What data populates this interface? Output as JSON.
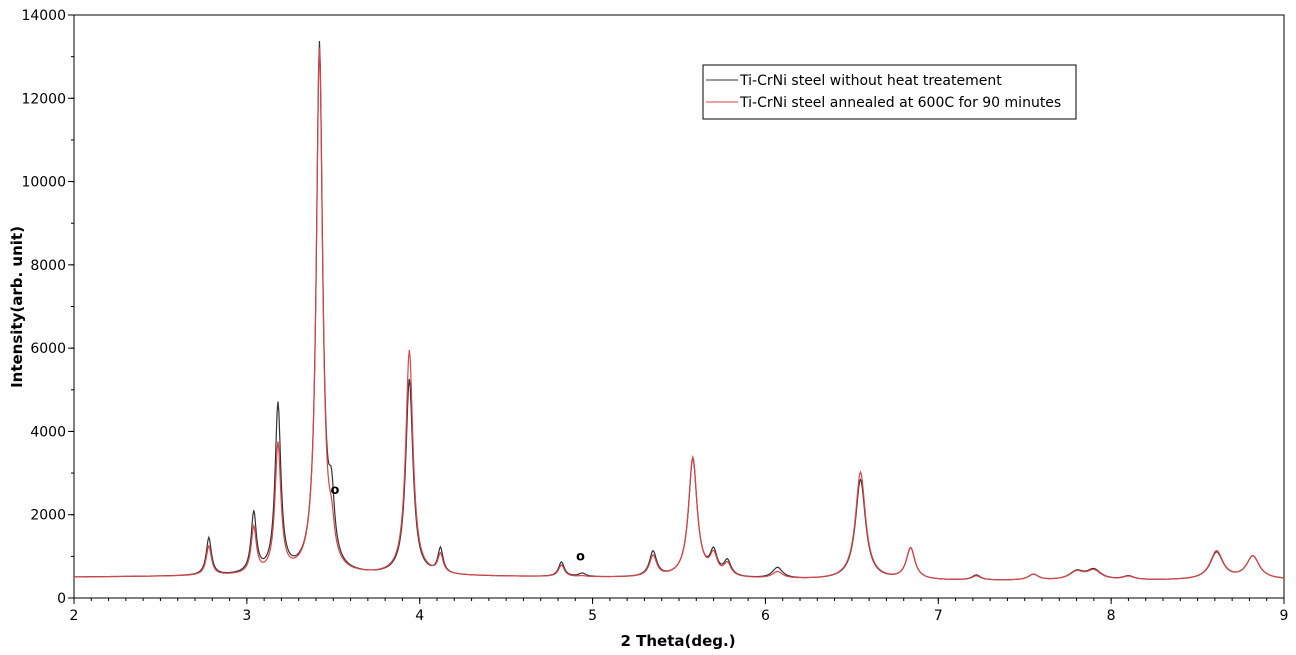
{
  "chart_data": {
    "type": "line",
    "title": "",
    "xlabel": "2 Theta(deg.)",
    "ylabel": "Intensity(arb. unit)",
    "xlim": [
      2,
      9
    ],
    "ylim": [
      0,
      14000
    ],
    "x_ticks": [
      2,
      3,
      4,
      5,
      6,
      7,
      8,
      9
    ],
    "y_ticks": [
      0,
      2000,
      4000,
      6000,
      8000,
      10000,
      12000,
      14000
    ],
    "grid": false,
    "legend_position": "top-right",
    "baseline": 500,
    "series": [
      {
        "name": "Ti-CrNi steel without heat treatement",
        "color": "#333333",
        "peaks": [
          {
            "x": 2.78,
            "y": 1400,
            "w": 0.018
          },
          {
            "x": 3.04,
            "y": 1950,
            "w": 0.018
          },
          {
            "x": 3.18,
            "y": 4550,
            "w": 0.02
          },
          {
            "x": 3.42,
            "y": 13200,
            "w": 0.022
          },
          {
            "x": 3.49,
            "y": 1900,
            "w": 0.02
          },
          {
            "x": 3.94,
            "y": 5200,
            "w": 0.025
          },
          {
            "x": 4.12,
            "y": 1100,
            "w": 0.018
          },
          {
            "x": 4.82,
            "y": 850,
            "w": 0.02
          },
          {
            "x": 4.94,
            "y": 580,
            "w": 0.025
          },
          {
            "x": 5.35,
            "y": 1100,
            "w": 0.025
          },
          {
            "x": 5.58,
            "y": 3350,
            "w": 0.03
          },
          {
            "x": 5.7,
            "y": 1050,
            "w": 0.025
          },
          {
            "x": 5.78,
            "y": 860,
            "w": 0.025
          },
          {
            "x": 6.07,
            "y": 760,
            "w": 0.035
          },
          {
            "x": 6.55,
            "y": 2900,
            "w": 0.035
          },
          {
            "x": 6.84,
            "y": 1250,
            "w": 0.03
          },
          {
            "x": 7.22,
            "y": 620,
            "w": 0.03
          },
          {
            "x": 7.55,
            "y": 640,
            "w": 0.035
          },
          {
            "x": 7.8,
            "y": 700,
            "w": 0.05
          },
          {
            "x": 7.9,
            "y": 740,
            "w": 0.05
          },
          {
            "x": 8.1,
            "y": 590,
            "w": 0.04
          },
          {
            "x": 8.61,
            "y": 1150,
            "w": 0.045
          },
          {
            "x": 8.82,
            "y": 1050,
            "w": 0.045
          }
        ]
      },
      {
        "name": "Ti-CrNi steel annealed at 600C for 90 minutes",
        "color": "#d9434a",
        "peaks": [
          {
            "x": 2.78,
            "y": 1200,
            "w": 0.018
          },
          {
            "x": 3.04,
            "y": 1600,
            "w": 0.018
          },
          {
            "x": 3.18,
            "y": 3600,
            "w": 0.02
          },
          {
            "x": 3.42,
            "y": 13100,
            "w": 0.022
          },
          {
            "x": 3.49,
            "y": 1200,
            "w": 0.02
          },
          {
            "x": 3.94,
            "y": 5900,
            "w": 0.025
          },
          {
            "x": 4.12,
            "y": 950,
            "w": 0.018
          },
          {
            "x": 4.82,
            "y": 780,
            "w": 0.02
          },
          {
            "x": 4.94,
            "y": 520,
            "w": 0.025
          },
          {
            "x": 5.35,
            "y": 1000,
            "w": 0.025
          },
          {
            "x": 5.58,
            "y": 3380,
            "w": 0.03
          },
          {
            "x": 5.7,
            "y": 980,
            "w": 0.025
          },
          {
            "x": 5.78,
            "y": 800,
            "w": 0.025
          },
          {
            "x": 6.07,
            "y": 660,
            "w": 0.035
          },
          {
            "x": 6.55,
            "y": 3080,
            "w": 0.035
          },
          {
            "x": 6.84,
            "y": 1250,
            "w": 0.03
          },
          {
            "x": 7.22,
            "y": 600,
            "w": 0.03
          },
          {
            "x": 7.55,
            "y": 640,
            "w": 0.035
          },
          {
            "x": 7.8,
            "y": 690,
            "w": 0.05
          },
          {
            "x": 7.9,
            "y": 720,
            "w": 0.05
          },
          {
            "x": 8.1,
            "y": 580,
            "w": 0.04
          },
          {
            "x": 8.61,
            "y": 1180,
            "w": 0.045
          },
          {
            "x": 8.82,
            "y": 1050,
            "w": 0.045
          }
        ]
      }
    ],
    "annotations": [
      {
        "text": "o",
        "x": 3.51,
        "y": 2500
      },
      {
        "text": "o",
        "x": 4.93,
        "y": 900
      }
    ]
  }
}
